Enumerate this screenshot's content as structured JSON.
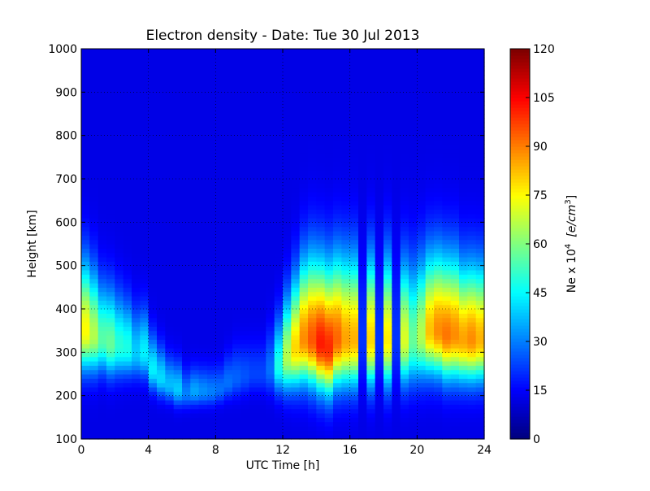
{
  "chart_data": {
    "type": "heatmap",
    "title": "Electron density - Date: Tue 30 Jul 2013",
    "xlabel": "UTC Time [h]",
    "ylabel": "Height [km]",
    "xlim": [
      0,
      24
    ],
    "ylim": [
      100,
      1000
    ],
    "x_ticks": [
      "0",
      "4",
      "8",
      "12",
      "16",
      "20",
      "24"
    ],
    "y_ticks": [
      "100",
      "200",
      "300",
      "400",
      "500",
      "600",
      "700",
      "800",
      "900",
      "1000"
    ],
    "grid": true,
    "colorbar": {
      "label": "Ne x 10^4 [e/cm^3]",
      "label_main": "Ne x 10",
      "label_exp": "4",
      "label_units": "[e/cm",
      "label_units_exp": "3",
      "label_close": "]",
      "range": [
        0,
        120
      ],
      "ticks": [
        "0",
        "15",
        "30",
        "45",
        "60",
        "75",
        "90",
        "105",
        "120"
      ],
      "colormap": "jet"
    },
    "profiles": [
      {
        "t": 0.0,
        "peak_height": 350,
        "peak_value": 70,
        "thickness": 85
      },
      {
        "t": 0.5,
        "peak_height": 340,
        "peak_value": 60,
        "thickness": 80
      },
      {
        "t": 1.0,
        "peak_height": 330,
        "peak_value": 48,
        "thickness": 70
      },
      {
        "t": 1.5,
        "peak_height": 320,
        "peak_value": 50,
        "thickness": 70
      },
      {
        "t": 2.0,
        "peak_height": 315,
        "peak_value": 42,
        "thickness": 65
      },
      {
        "t": 2.5,
        "peak_height": 310,
        "peak_value": 40,
        "thickness": 60
      },
      {
        "t": 3.0,
        "peak_height": 300,
        "peak_value": 30,
        "thickness": 55
      },
      {
        "t": 3.5,
        "peak_height": 300,
        "peak_value": 35,
        "thickness": 55
      },
      {
        "t": 4.0,
        "peak_height": 260,
        "peak_value": 35,
        "thickness": 45
      },
      {
        "t": 4.5,
        "peak_height": 240,
        "peak_value": 32,
        "thickness": 40
      },
      {
        "t": 5.0,
        "peak_height": 225,
        "peak_value": 28,
        "thickness": 35
      },
      {
        "t": 5.5,
        "peak_height": 215,
        "peak_value": 30,
        "thickness": 35
      },
      {
        "t": 6.0,
        "peak_height": 205,
        "peak_value": 20,
        "thickness": 30
      },
      {
        "t": 6.5,
        "peak_height": 210,
        "peak_value": 25,
        "thickness": 30
      },
      {
        "t": 7.0,
        "peak_height": 210,
        "peak_value": 22,
        "thickness": 30
      },
      {
        "t": 7.5,
        "peak_height": 210,
        "peak_value": 20,
        "thickness": 30
      },
      {
        "t": 8.0,
        "peak_height": 215,
        "peak_value": 18,
        "thickness": 30
      },
      {
        "t": 8.5,
        "peak_height": 230,
        "peak_value": 18,
        "thickness": 35
      },
      {
        "t": 9.0,
        "peak_height": 240,
        "peak_value": 16,
        "thickness": 40
      },
      {
        "t": 9.5,
        "peak_height": 245,
        "peak_value": 14,
        "thickness": 40
      },
      {
        "t": 10.0,
        "peak_height": 250,
        "peak_value": 12,
        "thickness": 40
      },
      {
        "t": 10.5,
        "peak_height": 250,
        "peak_value": 12,
        "thickness": 40
      },
      {
        "t": 11.0,
        "peak_height": 260,
        "peak_value": 18,
        "thickness": 50
      },
      {
        "t": 11.5,
        "peak_height": 270,
        "peak_value": 40,
        "thickness": 60
      },
      {
        "t": 12.0,
        "peak_height": 290,
        "peak_value": 60,
        "thickness": 75
      },
      {
        "t": 12.5,
        "peak_height": 310,
        "peak_value": 75,
        "thickness": 85
      },
      {
        "t": 13.0,
        "peak_height": 330,
        "peak_value": 85,
        "thickness": 95
      },
      {
        "t": 13.5,
        "peak_height": 330,
        "peak_value": 92,
        "thickness": 100
      },
      {
        "t": 14.0,
        "peak_height": 320,
        "peak_value": 100,
        "thickness": 100
      },
      {
        "t": 14.5,
        "peak_height": 310,
        "peak_value": 98,
        "thickness": 100
      },
      {
        "t": 15.0,
        "peak_height": 330,
        "peak_value": 90,
        "thickness": 100
      },
      {
        "t": 15.5,
        "peak_height": 330,
        "peak_value": 82,
        "thickness": 100
      },
      {
        "t": 16.0,
        "peak_height": 330,
        "peak_value": 80,
        "thickness": 100
      },
      {
        "t": 16.5,
        "peak_height": 330,
        "peak_value": 10,
        "thickness": 100
      },
      {
        "t": 17.0,
        "peak_height": 330,
        "peak_value": 75,
        "thickness": 100
      },
      {
        "t": 17.5,
        "peak_height": 330,
        "peak_value": 10,
        "thickness": 100
      },
      {
        "t": 18.0,
        "peak_height": 330,
        "peak_value": 72,
        "thickness": 100
      },
      {
        "t": 18.5,
        "peak_height": 330,
        "peak_value": 10,
        "thickness": 100
      },
      {
        "t": 19.0,
        "peak_height": 330,
        "peak_value": 65,
        "thickness": 95
      },
      {
        "t": 19.5,
        "peak_height": 330,
        "peak_value": 50,
        "thickness": 95
      },
      {
        "t": 20.0,
        "peak_height": 340,
        "peak_value": 60,
        "thickness": 95
      },
      {
        "t": 20.5,
        "peak_height": 350,
        "peak_value": 78,
        "thickness": 95
      },
      {
        "t": 21.0,
        "peak_height": 350,
        "peak_value": 85,
        "thickness": 95
      },
      {
        "t": 21.5,
        "peak_height": 340,
        "peak_value": 88,
        "thickness": 95
      },
      {
        "t": 22.0,
        "peak_height": 340,
        "peak_value": 85,
        "thickness": 95
      },
      {
        "t": 22.5,
        "peak_height": 330,
        "peak_value": 82,
        "thickness": 90
      },
      {
        "t": 23.0,
        "peak_height": 330,
        "peak_value": 85,
        "thickness": 90
      },
      {
        "t": 23.5,
        "peak_height": 330,
        "peak_value": 80,
        "thickness": 90
      }
    ]
  }
}
